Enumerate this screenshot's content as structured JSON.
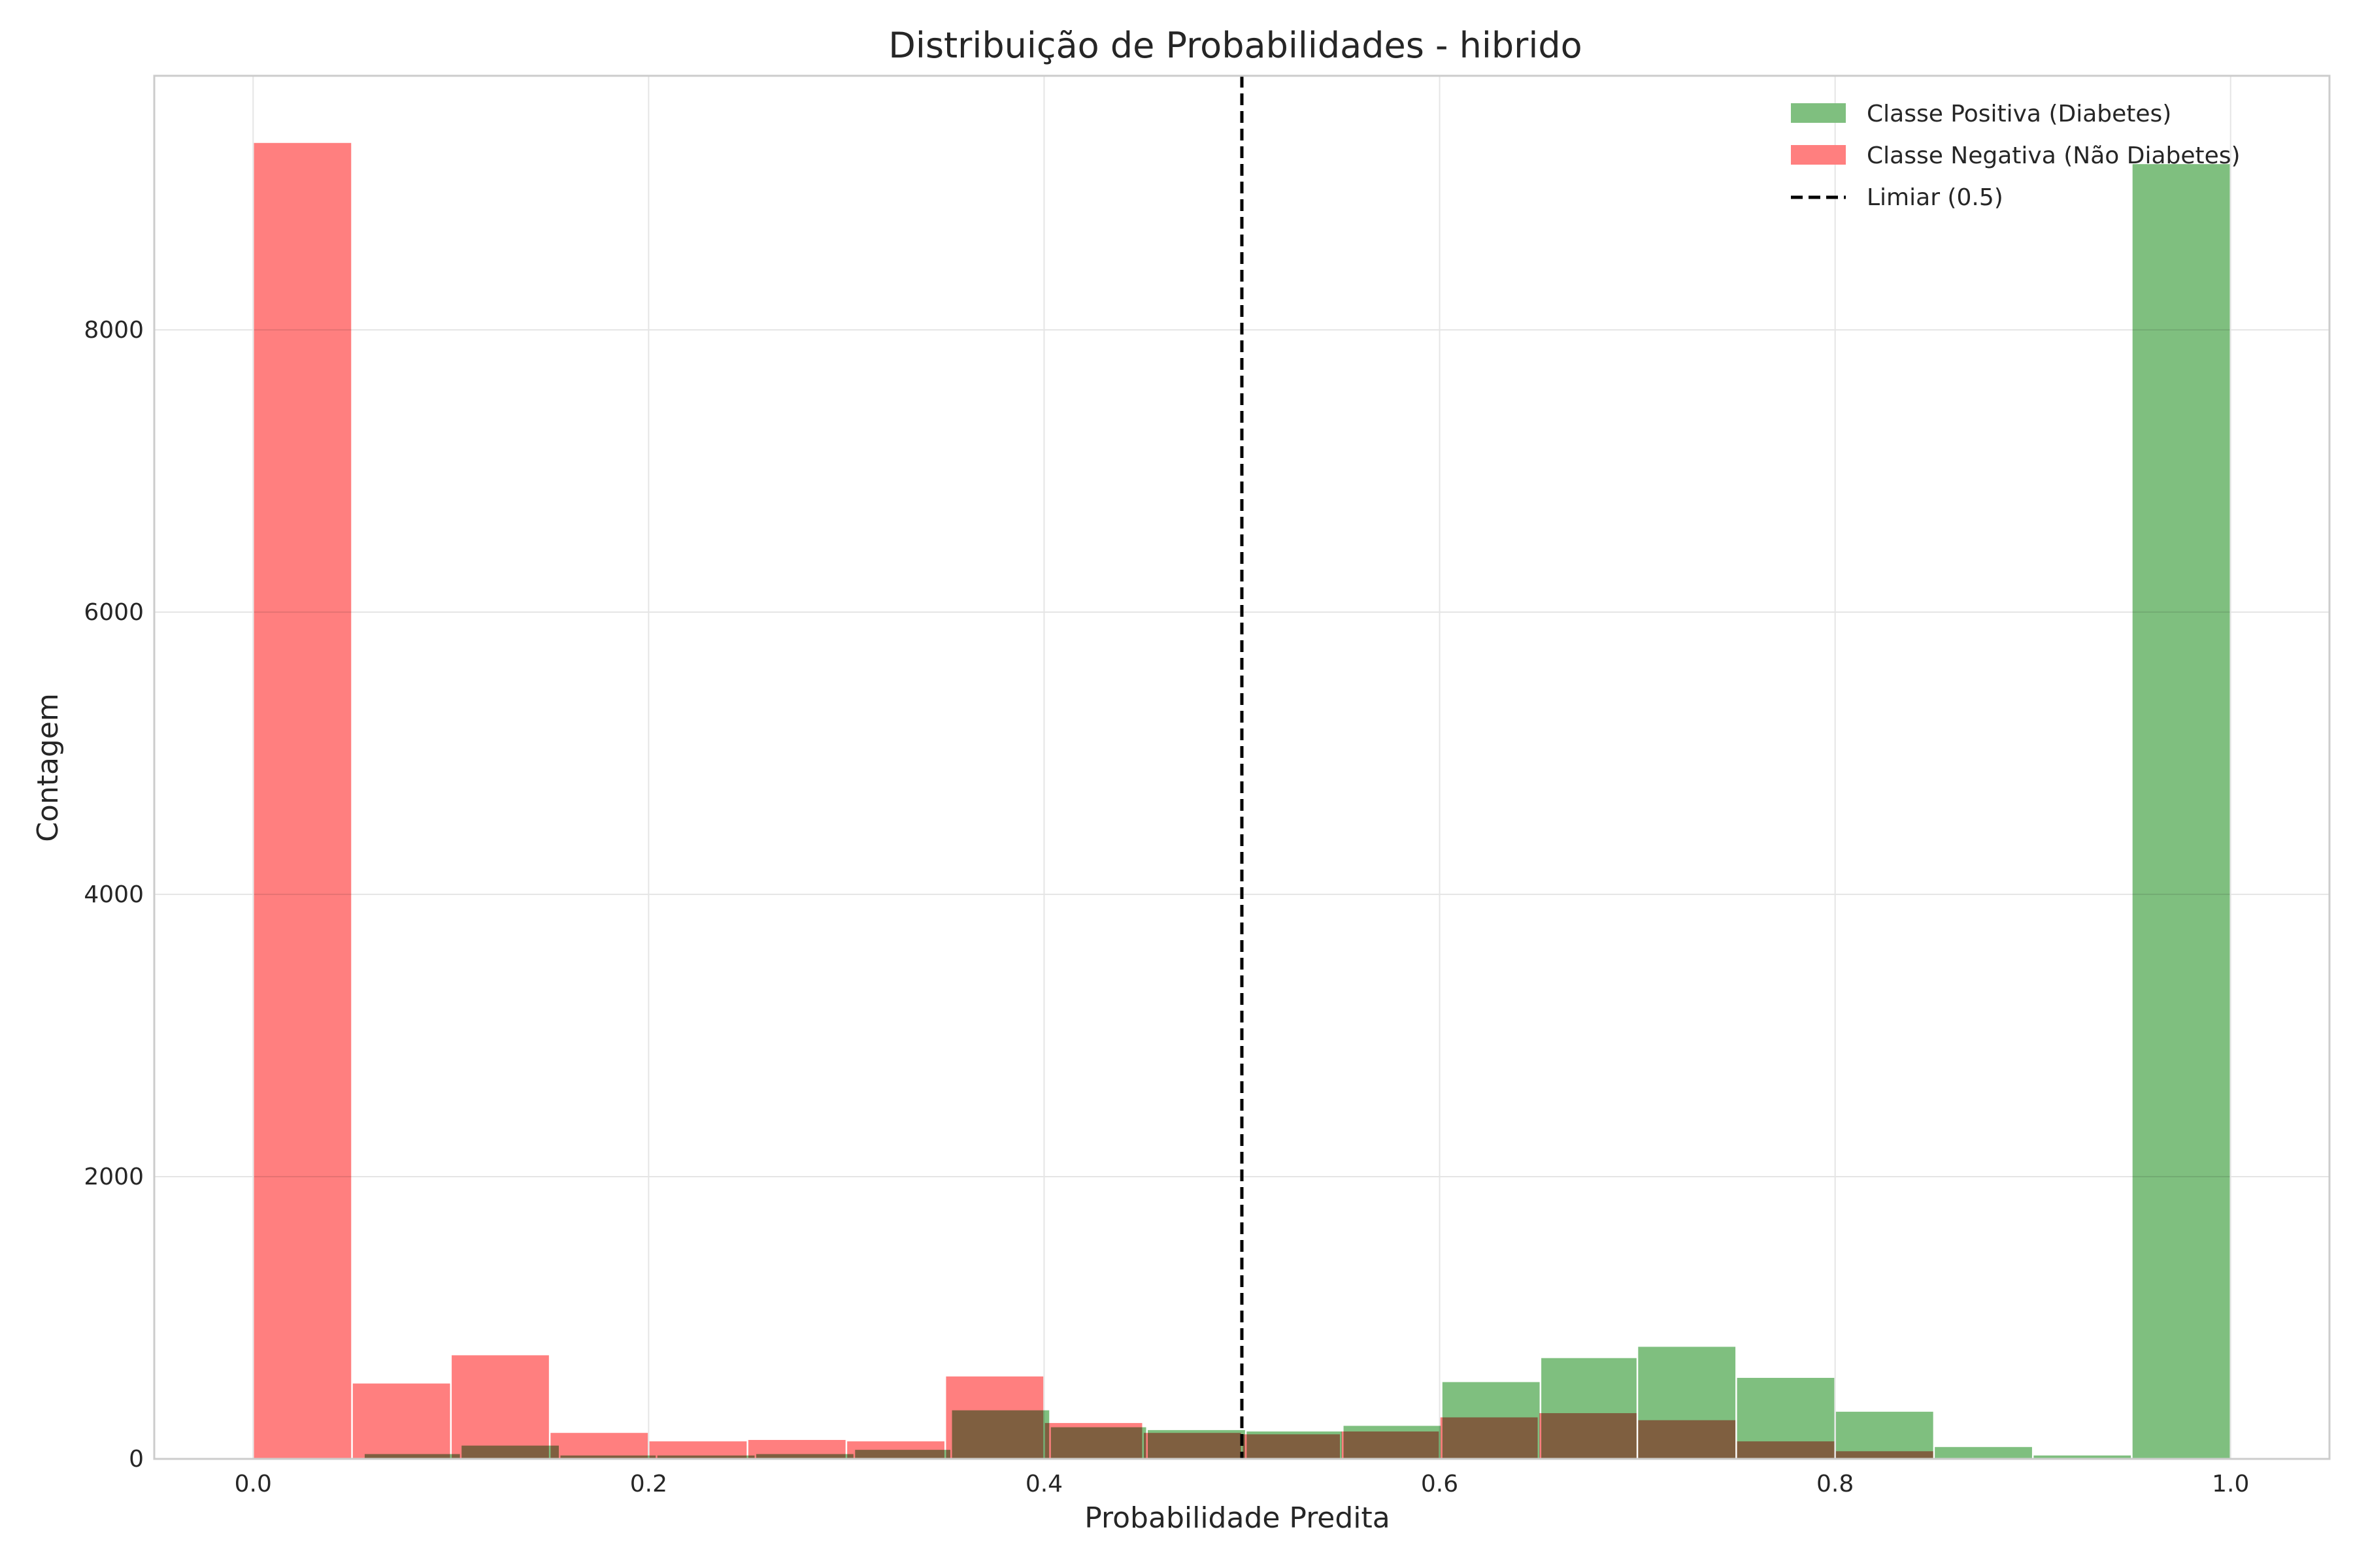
{
  "chart_data": {
    "type": "bar",
    "title": "Distribuição de Probabilidades - hibrido",
    "xlabel": "Probabilidade Predita",
    "ylabel": "Contagem",
    "xlim": [
      -0.05,
      1.05
    ],
    "ylim": [
      0,
      9800
    ],
    "x_ticks": [
      0.0,
      0.2,
      0.4,
      0.6,
      0.8,
      1.0
    ],
    "x_tick_labels": [
      "0.0",
      "0.2",
      "0.4",
      "0.6",
      "0.8",
      "1.0"
    ],
    "y_ticks": [
      0,
      2000,
      4000,
      6000,
      8000
    ],
    "y_tick_labels": [
      "0",
      "2000",
      "4000",
      "6000",
      "8000"
    ],
    "grid": true,
    "legend_position": "top-right",
    "threshold": {
      "x": 0.5,
      "label": "Limiar (0.5)",
      "color": "#000000",
      "style": "dashed"
    },
    "series": [
      {
        "name": "Classe Positiva (Diabetes)",
        "color": "#7fbf7f",
        "bins": [
          {
            "start": 0.056,
            "end": 0.105,
            "value": 40
          },
          {
            "start": 0.105,
            "end": 0.155,
            "value": 100
          },
          {
            "start": 0.155,
            "end": 0.204,
            "value": 30
          },
          {
            "start": 0.204,
            "end": 0.254,
            "value": 30
          },
          {
            "start": 0.254,
            "end": 0.304,
            "value": 40
          },
          {
            "start": 0.304,
            "end": 0.353,
            "value": 70
          },
          {
            "start": 0.353,
            "end": 0.403,
            "value": 350
          },
          {
            "start": 0.403,
            "end": 0.452,
            "value": 230
          },
          {
            "start": 0.452,
            "end": 0.502,
            "value": 210
          },
          {
            "start": 0.502,
            "end": 0.551,
            "value": 200
          },
          {
            "start": 0.551,
            "end": 0.601,
            "value": 240
          },
          {
            "start": 0.601,
            "end": 0.651,
            "value": 550
          },
          {
            "start": 0.651,
            "end": 0.7,
            "value": 720
          },
          {
            "start": 0.7,
            "end": 0.75,
            "value": 800
          },
          {
            "start": 0.75,
            "end": 0.8,
            "value": 580
          },
          {
            "start": 0.8,
            "end": 0.85,
            "value": 340
          },
          {
            "start": 0.85,
            "end": 0.9,
            "value": 90
          },
          {
            "start": 0.9,
            "end": 0.95,
            "value": 30
          },
          {
            "start": 0.95,
            "end": 1.0,
            "value": 9180
          }
        ]
      },
      {
        "name": "Classe Negativa (Não Diabetes)",
        "color": "#ff7f7f",
        "bins": [
          {
            "start": 0.0,
            "end": 0.05,
            "value": 9330
          },
          {
            "start": 0.05,
            "end": 0.1,
            "value": 540
          },
          {
            "start": 0.1,
            "end": 0.15,
            "value": 740
          },
          {
            "start": 0.15,
            "end": 0.2,
            "value": 190
          },
          {
            "start": 0.2,
            "end": 0.25,
            "value": 130
          },
          {
            "start": 0.25,
            "end": 0.3,
            "value": 140
          },
          {
            "start": 0.3,
            "end": 0.35,
            "value": 130
          },
          {
            "start": 0.35,
            "end": 0.4,
            "value": 590
          },
          {
            "start": 0.4,
            "end": 0.45,
            "value": 260
          },
          {
            "start": 0.45,
            "end": 0.5,
            "value": 190
          },
          {
            "start": 0.5,
            "end": 0.55,
            "value": 180
          },
          {
            "start": 0.55,
            "end": 0.6,
            "value": 200
          },
          {
            "start": 0.6,
            "end": 0.65,
            "value": 300
          },
          {
            "start": 0.65,
            "end": 0.7,
            "value": 330
          },
          {
            "start": 0.7,
            "end": 0.75,
            "value": 280
          },
          {
            "start": 0.75,
            "end": 0.8,
            "value": 130
          },
          {
            "start": 0.8,
            "end": 0.85,
            "value": 60
          }
        ]
      }
    ]
  }
}
